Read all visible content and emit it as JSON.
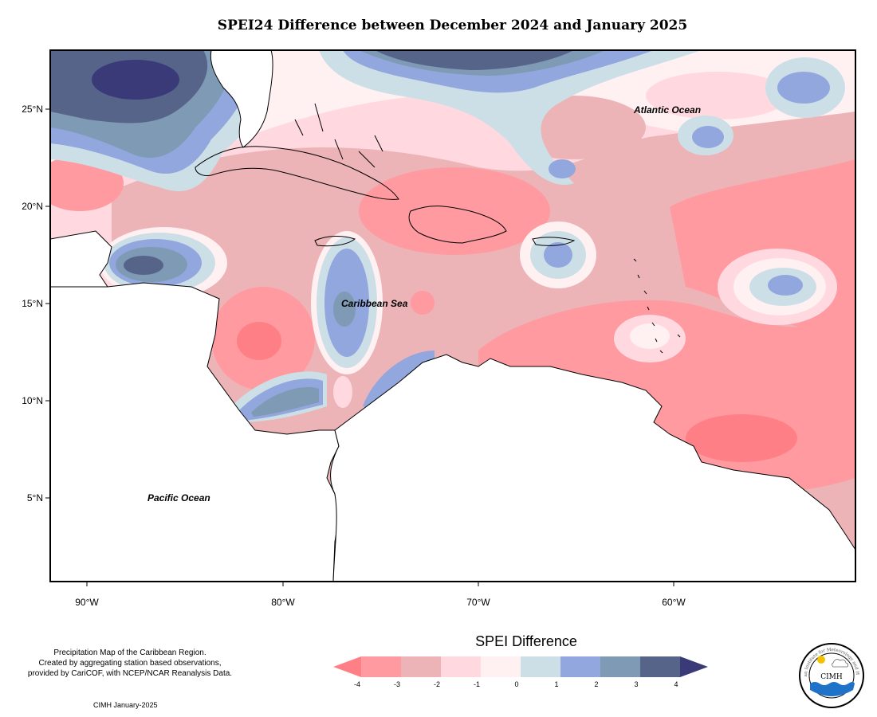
{
  "title": "SPEI24 Difference between December 2024 and January 2025",
  "map": {
    "latitude_labels": [
      "25°N",
      "20°N",
      "15°N",
      "10°N",
      "5°N"
    ],
    "longitude_labels": [
      "90°W",
      "80°W",
      "70°W",
      "60°W"
    ],
    "region_labels": {
      "atlantic": "Atlantic Ocean",
      "caribbean": "Caribbean Sea",
      "pacific": "Pacific Ocean"
    }
  },
  "legend": {
    "title": "SPEI Difference",
    "ticks": [
      "-4",
      "-3",
      "-2",
      "-1",
      "0",
      "1",
      "2",
      "3",
      "4"
    ],
    "colors": [
      "#ff7f86",
      "#ff9aa0",
      "#edb4b8",
      "#ffd9df",
      "#fff0f2",
      "#cddfe6",
      "#93a7df",
      "#7e9ab4",
      "#56648a",
      "#3a3a78"
    ]
  },
  "credit": {
    "line1": "Precipitation Map of the Caribbean Region.",
    "line2": "Created by aggregating station based observations,",
    "line3": "provided by CariCOF, with NCEP/NCAR Reanalysis Data.",
    "date": "CIMH January-2025"
  },
  "logo": {
    "text": "CIMH",
    "arc_text": "Caribbean Institute for Meteorology and Hydrology"
  }
}
